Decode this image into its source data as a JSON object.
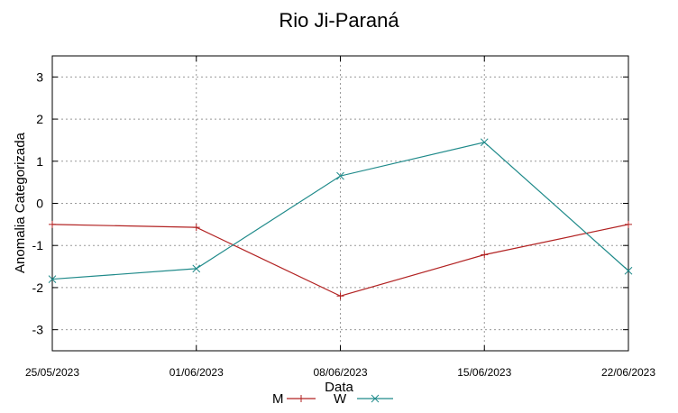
{
  "chart_data": {
    "type": "line",
    "title": "Rio Ji-Paraná",
    "xlabel": "Data",
    "ylabel": "Anomalia Categorizada",
    "categories": [
      "25/05/2023",
      "01/06/2023",
      "08/06/2023",
      "15/06/2023",
      "22/06/2023"
    ],
    "ylim": [
      -3.5,
      3.5
    ],
    "yticks": [
      3,
      2,
      1,
      0,
      -1,
      -2,
      -3
    ],
    "grid": true,
    "legend_position": "bottom-center",
    "series": [
      {
        "name": "M",
        "color": "#b22222",
        "marker": "plus",
        "values": [
          -0.5,
          -0.57,
          -2.2,
          -1.22,
          -0.5
        ]
      },
      {
        "name": "W",
        "color": "#1f8a8a",
        "marker": "x",
        "values": [
          -1.8,
          -1.55,
          0.65,
          1.45,
          -1.6
        ]
      }
    ]
  }
}
